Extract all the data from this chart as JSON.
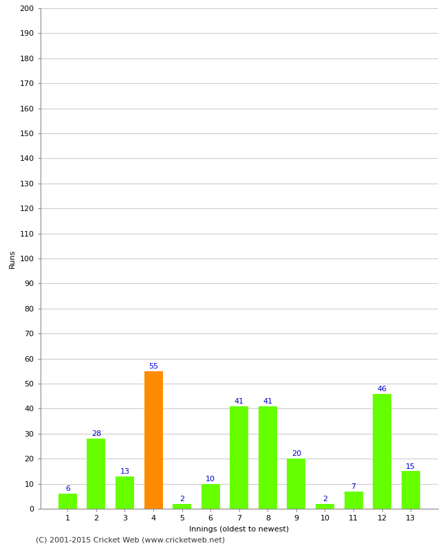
{
  "xlabel": "Innings (oldest to newest)",
  "ylabel": "Runs",
  "categories": [
    1,
    2,
    3,
    4,
    5,
    6,
    7,
    8,
    9,
    10,
    11,
    12,
    13
  ],
  "values": [
    6,
    28,
    13,
    55,
    2,
    10,
    41,
    41,
    20,
    2,
    7,
    46,
    15
  ],
  "bar_colors": [
    "#66ff00",
    "#66ff00",
    "#66ff00",
    "#ff8c00",
    "#66ff00",
    "#66ff00",
    "#66ff00",
    "#66ff00",
    "#66ff00",
    "#66ff00",
    "#66ff00",
    "#66ff00",
    "#66ff00"
  ],
  "ylim": [
    0,
    200
  ],
  "yticks": [
    0,
    10,
    20,
    30,
    40,
    50,
    60,
    70,
    80,
    90,
    100,
    110,
    120,
    130,
    140,
    150,
    160,
    170,
    180,
    190,
    200
  ],
  "label_color": "#0000cc",
  "label_fontsize": 8,
  "axis_fontsize": 8,
  "ylabel_fontsize": 8,
  "xlabel_fontsize": 8,
  "footer": "(C) 2001-2015 Cricket Web (www.cricketweb.net)",
  "footer_fontsize": 8,
  "background_color": "#ffffff",
  "grid_color": "#cccccc",
  "bar_width": 0.65
}
